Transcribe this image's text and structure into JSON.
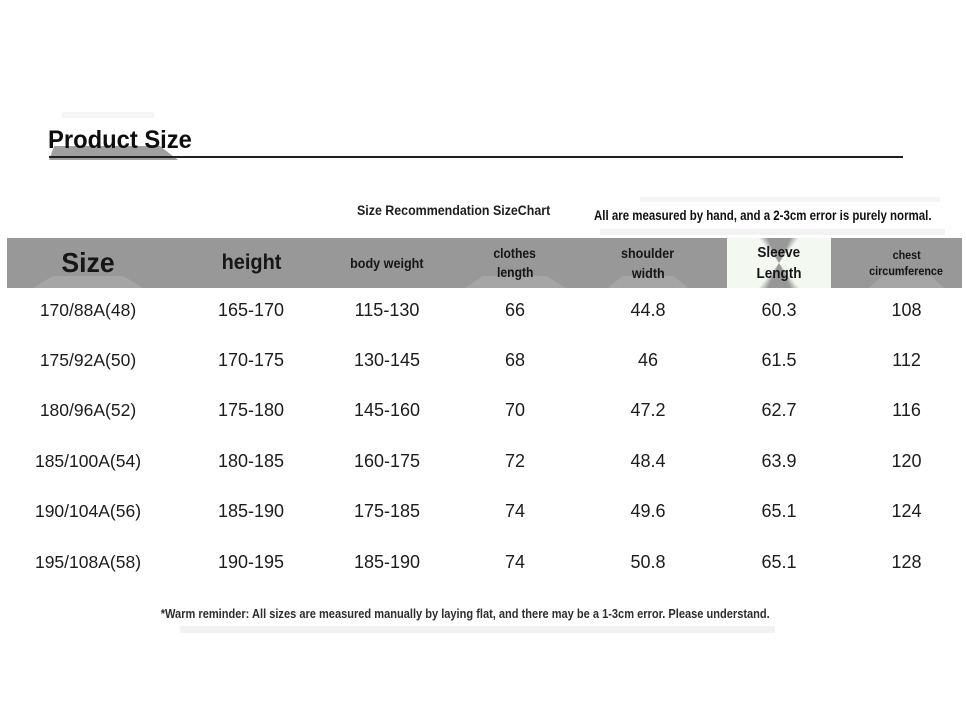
{
  "page": {
    "title": "Product Size",
    "subtitle_left": "Size Recommendation SizeChart",
    "subtitle_right": "All are measured by hand, and a 2-3cm error is purely normal.",
    "footer_note": "*Warm reminder: All sizes are measured manually by laying flat, and there may be a 1-3cm error. Please understand."
  },
  "table_headers": [
    {
      "line1": "Size"
    },
    {
      "line1": "height"
    },
    {
      "line1": "body weight"
    },
    {
      "line1": "clothes",
      "line2": "length"
    },
    {
      "line1": "shoulder",
      "line2": "width"
    },
    {
      "line1": "Sleeve",
      "line2": "Length"
    },
    {
      "line1": "chest",
      "line2": "circumference"
    }
  ],
  "chart_data": {
    "type": "table",
    "title": "Size Recommendation SizeChart",
    "columns": [
      "Size",
      "height",
      "body weight",
      "clothes length",
      "shoulder width",
      "Sleeve Length",
      "chest circumference"
    ],
    "rows": [
      [
        "170/88A(48)",
        "165-170",
        "115-130",
        "66",
        "44.8",
        "60.3",
        "108"
      ],
      [
        "175/92A(50)",
        "170-175",
        "130-145",
        "68",
        "46",
        "61.5",
        "112"
      ],
      [
        "180/96A(52)",
        "175-180",
        "145-160",
        "70",
        "47.2",
        "62.7",
        "116"
      ],
      [
        "185/100A(54)",
        "180-185",
        "160-175",
        "72",
        "48.4",
        "63.9",
        "120"
      ],
      [
        "190/104A(56)",
        "185-190",
        "175-185",
        "74",
        "49.6",
        "65.1",
        "124"
      ],
      [
        "195/108A(58)",
        "190-195",
        "185-190",
        "74",
        "50.8",
        "65.1",
        "128"
      ]
    ]
  },
  "colors": {
    "header_band": "#989898",
    "title_highlight": "#a0a0a0",
    "underline": "#1f1f1f",
    "text": "#1c1c1c",
    "background": "#ffffff"
  }
}
